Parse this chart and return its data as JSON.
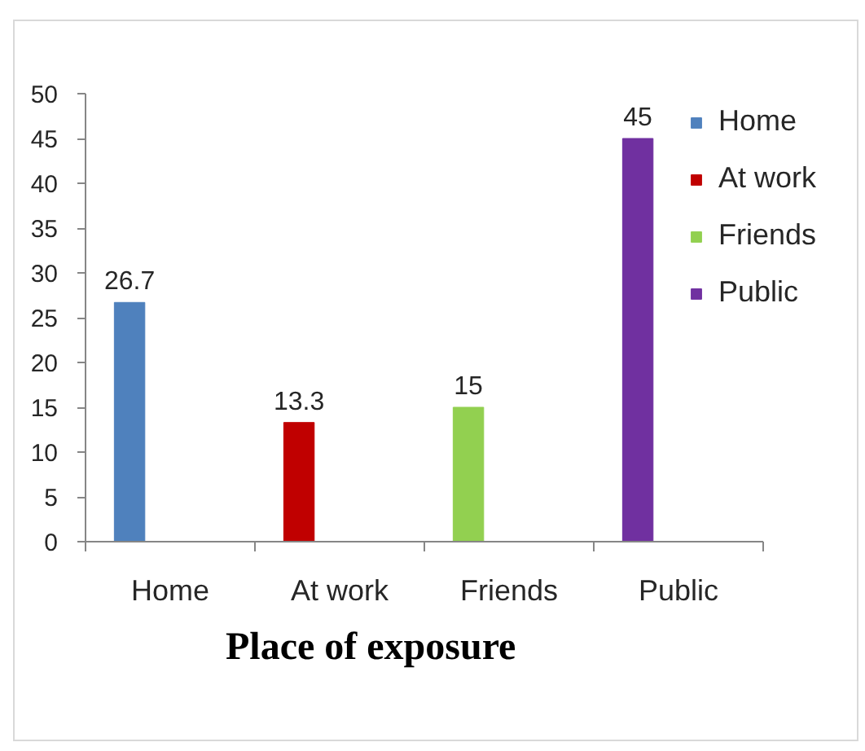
{
  "chart_data": {
    "type": "bar",
    "xlabel": "Place of exposure",
    "categories": [
      "Home",
      "At work",
      "Friends",
      "Public"
    ],
    "series": [
      {
        "name": "Home",
        "color": "#4f81bd",
        "values": [
          26.7,
          null,
          null,
          null
        ]
      },
      {
        "name": "At work",
        "color": "#c00000",
        "values": [
          null,
          13.3,
          null,
          null
        ]
      },
      {
        "name": "Friends",
        "color": "#92d050",
        "values": [
          null,
          null,
          15,
          null
        ]
      },
      {
        "name": "Public",
        "color": "#7030a0",
        "values": [
          null,
          null,
          null,
          45
        ]
      }
    ],
    "ylim": [
      0,
      50
    ],
    "yticks": [
      0,
      5,
      10,
      15,
      20,
      25,
      30,
      35,
      40,
      45,
      50
    ],
    "data_labels": true,
    "legend": "top right",
    "grid": false
  }
}
